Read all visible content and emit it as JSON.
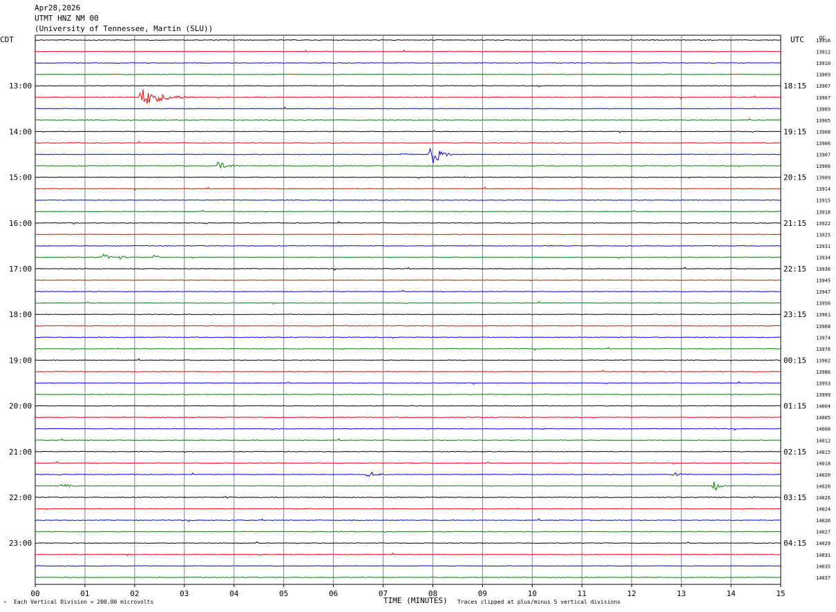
{
  "header": {
    "date": "Apr28,2026",
    "station": "UTMT HNZ NM 00",
    "network": "(University of Tennessee, Martin (SLU))"
  },
  "left_zone_label": "CDT",
  "right_zone_label": "UTC",
  "dc_label": "DC",
  "colors": {
    "trace_cycle": [
      "#000000",
      "#ff0000",
      "#0000ff",
      "#008000"
    ],
    "grid_vertical": "#8080a0",
    "frame": "#000000"
  },
  "footer": {
    "scale_note": "Each Vertical Division =  200.00 microvolts",
    "xlabel": "TIME (MINUTES)",
    "clip_note": "Traces clipped at plus/minus 5 vertical divisions"
  },
  "chart_data": {
    "type": "helicorder",
    "x_range": [
      0,
      15
    ],
    "x_ticks": [
      "00",
      "01",
      "02",
      "03",
      "04",
      "05",
      "06",
      "07",
      "08",
      "09",
      "10",
      "11",
      "12",
      "13",
      "14",
      "15"
    ],
    "traces_per_hour": 4,
    "cdt_labels": [
      "13:00",
      "14:00",
      "15:00",
      "16:00",
      "17:00",
      "18:00",
      "19:00",
      "20:00",
      "21:00",
      "22:00",
      "23:00"
    ],
    "utc_labels": [
      "18:15",
      "19:15",
      "20:15",
      "21:15",
      "22:15",
      "23:15",
      "00:15",
      "01:15",
      "02:15",
      "03:15",
      "04:15"
    ],
    "first_label_trace": 4,
    "dc_values": [
      "13916",
      "13912",
      "13910",
      "13909",
      "13907",
      "13907",
      "13909",
      "13905",
      "13908",
      "13906",
      "13907",
      "13906",
      "13909",
      "13914",
      "13915",
      "13918",
      "13922",
      "13925",
      "13931",
      "13934",
      "13936",
      "13945",
      "13947",
      "13956",
      "13961",
      "13968",
      "13974",
      "13976",
      "13982",
      "13986",
      "13993",
      "13999",
      "14004",
      "14005",
      "14008",
      "14012",
      "14015",
      "14018",
      "14020",
      "14026",
      "14026",
      "14024",
      "14026",
      "14027",
      "14029",
      "14031",
      "14035",
      "14037"
    ],
    "events": [
      {
        "trace": 5,
        "minute": 2.1,
        "amplitude": 15,
        "duration": 1.3
      },
      {
        "trace": 10,
        "minute": 7.95,
        "amplitude": 22,
        "duration": 0.5
      },
      {
        "trace": 10,
        "minute": 7.3,
        "amplitude": 2,
        "duration": 0.8
      },
      {
        "trace": 11,
        "minute": 3.65,
        "amplitude": 7,
        "duration": 0.7
      },
      {
        "trace": 19,
        "minute": 1.35,
        "amplitude": 8,
        "duration": 0.3
      },
      {
        "trace": 19,
        "minute": 2.4,
        "amplitude": 7,
        "duration": 0.2
      },
      {
        "trace": 19,
        "minute": 1.7,
        "amplitude": 3,
        "duration": 0.5
      },
      {
        "trace": 39,
        "minute": 0.55,
        "amplitude": 6,
        "duration": 0.3
      },
      {
        "trace": 39,
        "minute": 13.65,
        "amplitude": 9,
        "duration": 0.4
      },
      {
        "trace": 38,
        "minute": 6.7,
        "amplitude": 6,
        "duration": 0.5
      },
      {
        "trace": 38,
        "minute": 12.85,
        "amplitude": 5,
        "duration": 0.5
      },
      {
        "trace": 40,
        "minute": 3.8,
        "amplitude": 2,
        "duration": 0.4
      },
      {
        "trace": 40,
        "minute": 14.4,
        "amplitude": 2,
        "duration": 0.3
      }
    ],
    "clip_divisions": 5,
    "scale_microvolts_per_division": 200.0
  }
}
